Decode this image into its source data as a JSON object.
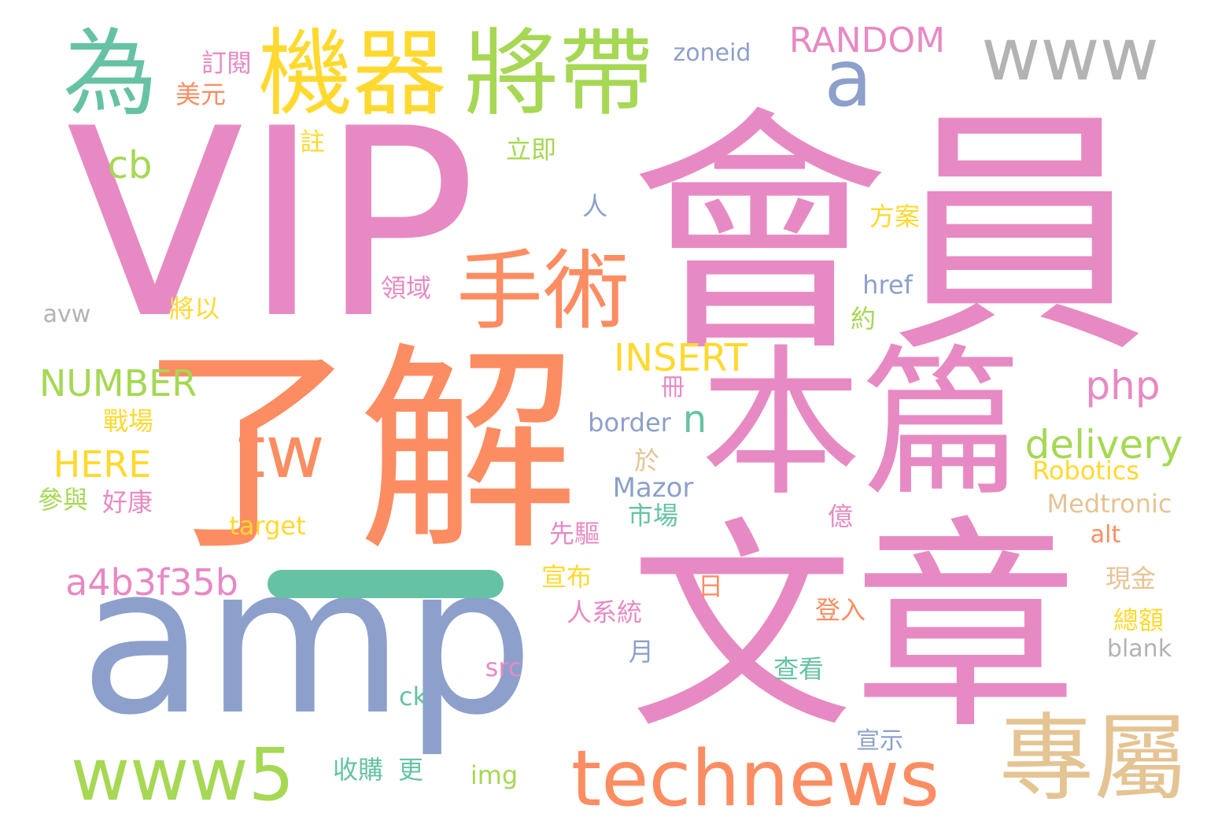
{
  "words": [
    {
      "text": "會員",
      "color": "#e78ac3"
    },
    {
      "text": "VIP",
      "color": "#e78ac3"
    },
    {
      "text": "了解",
      "color": "#fc8d62"
    },
    {
      "text": "文章",
      "color": "#e78ac3"
    },
    {
      "text": "amp",
      "color": "#8da0cb"
    },
    {
      "text": "本篇",
      "color": "#e78ac3"
    },
    {
      "text": "專屬",
      "color": "#e5c494"
    },
    {
      "text": "technews",
      "color": "#fc8d62"
    },
    {
      "text": "www5",
      "color": "#a6d854"
    },
    {
      "text": "將帶",
      "color": "#a6d854"
    },
    {
      "text": "機器",
      "color": "#ffd92f"
    },
    {
      "text": "為",
      "color": "#66c2a5"
    },
    {
      "text": "www",
      "color": "#b3b3b3"
    },
    {
      "text": "手術",
      "color": "#fc8d62"
    },
    {
      "text": "a",
      "color": "#8da0cb"
    },
    {
      "text": "tw",
      "color": "#fc8d62"
    },
    {
      "text": "RANDOM",
      "color": "#e78ac3"
    },
    {
      "text": "delivery",
      "color": "#a6d854"
    },
    {
      "text": "a4b3f35b",
      "color": "#e78ac3"
    },
    {
      "text": "INSERT",
      "color": "#ffd92f"
    },
    {
      "text": "NUMBER",
      "color": "#a6d854"
    },
    {
      "text": "php",
      "color": "#e78ac3"
    },
    {
      "text": "HERE",
      "color": "#ffd92f"
    },
    {
      "text": "cb",
      "color": "#a6d854"
    },
    {
      "text": "n",
      "color": "#66c2a5"
    },
    {
      "text": "zoneid",
      "color": "#8da0cb"
    },
    {
      "text": "訂閱",
      "color": "#e78ac3"
    },
    {
      "text": "美元",
      "color": "#fc8d62"
    },
    {
      "text": "註",
      "color": "#ffd92f"
    },
    {
      "text": "立即",
      "color": "#a6d854"
    },
    {
      "text": "人",
      "color": "#8da0cb"
    },
    {
      "text": "方案",
      "color": "#ffd92f"
    },
    {
      "text": "href",
      "color": "#8da0cb"
    },
    {
      "text": "領域",
      "color": "#e78ac3"
    },
    {
      "text": "將以",
      "color": "#ffd92f"
    },
    {
      "text": "avw",
      "color": "#b3b3b3"
    },
    {
      "text": "約",
      "color": "#a6d854"
    },
    {
      "text": "冊",
      "color": "#e78ac3"
    },
    {
      "text": "戰場",
      "color": "#ffd92f"
    },
    {
      "text": "border",
      "color": "#8da0cb"
    },
    {
      "text": "於",
      "color": "#e5c494"
    },
    {
      "text": "Robotics",
      "color": "#ffd92f"
    },
    {
      "text": "參與",
      "color": "#a6d854"
    },
    {
      "text": "好康",
      "color": "#e78ac3"
    },
    {
      "text": "Mazor",
      "color": "#8da0cb"
    },
    {
      "text": "Medtronic",
      "color": "#e5c494"
    },
    {
      "text": "target",
      "color": "#ffd92f"
    },
    {
      "text": "市場",
      "color": "#66c2a5"
    },
    {
      "text": "億",
      "color": "#e78ac3"
    },
    {
      "text": "先驅",
      "color": "#e78ac3"
    },
    {
      "text": "alt",
      "color": "#fc8d62"
    },
    {
      "text": "宣布",
      "color": "#ffd92f"
    },
    {
      "text": "現金",
      "color": "#e5c494"
    },
    {
      "text": "日",
      "color": "#fc8d62"
    },
    {
      "text": "人系統",
      "color": "#e78ac3"
    },
    {
      "text": "登入",
      "color": "#fc8d62"
    },
    {
      "text": "總額",
      "color": "#ffd92f"
    },
    {
      "text": "月",
      "color": "#8da0cb"
    },
    {
      "text": "blank",
      "color": "#b3b3b3"
    },
    {
      "text": "src",
      "color": "#e78ac3"
    },
    {
      "text": "查看",
      "color": "#66c2a5"
    },
    {
      "text": "ck",
      "color": "#66c2a5"
    },
    {
      "text": "宣示",
      "color": "#8da0cb"
    },
    {
      "text": "收購",
      "color": "#66c2a5"
    },
    {
      "text": "更",
      "color": "#66c2a5"
    },
    {
      "text": "img",
      "color": "#a6d854"
    },
    {
      "text": "",
      "color": "#66c2a5"
    }
  ]
}
